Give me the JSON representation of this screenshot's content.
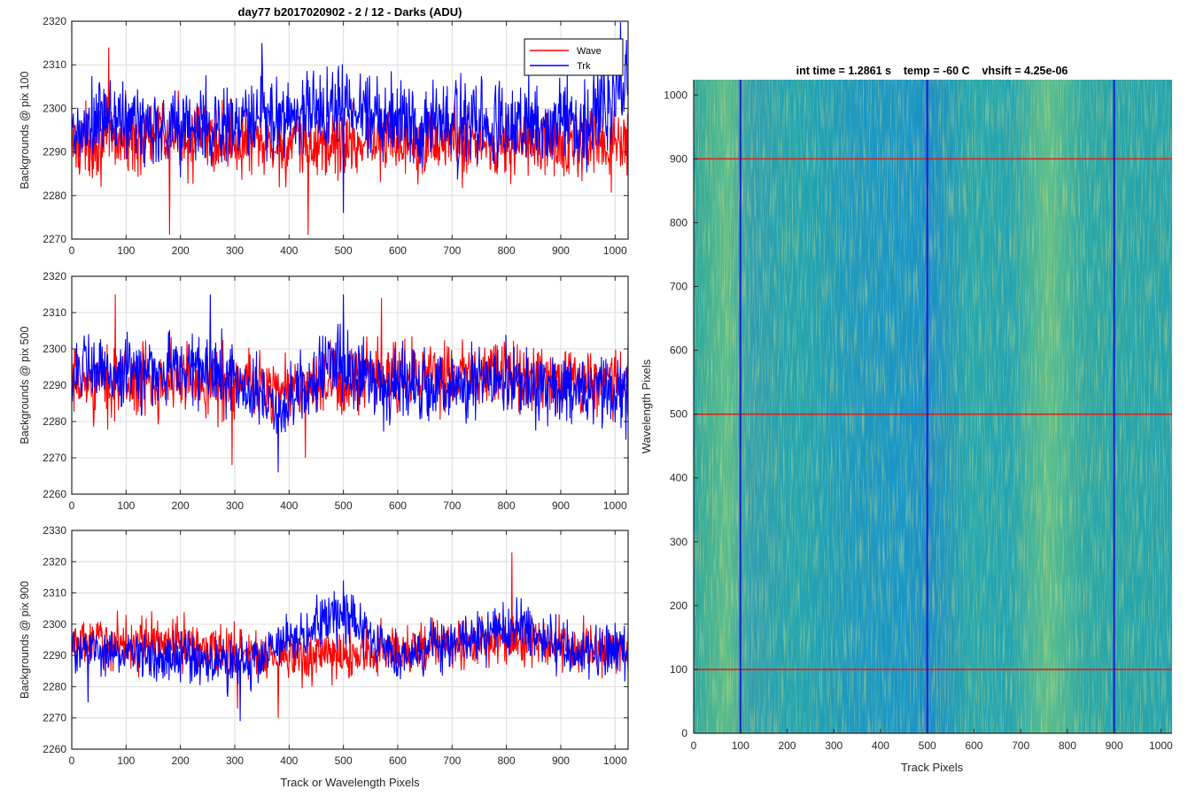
{
  "figure": {
    "title": "day77 b2017020902 - 2 / 12 - Darks (ADU)",
    "left_xlabel": "Track or Wavelength Pixels"
  },
  "chart_data": [
    {
      "type": "line",
      "title": "day77 b2017020902 - 2 / 12 - Darks (ADU)",
      "xlabel": "",
      "ylabel": "Backgrounds @ pix 100",
      "xlim": [
        0,
        1024
      ],
      "ylim": [
        2270,
        2320
      ],
      "xticks": [
        0,
        100,
        200,
        300,
        400,
        500,
        600,
        700,
        800,
        900,
        1000
      ],
      "yticks": [
        2270,
        2280,
        2290,
        2300,
        2310,
        2320
      ],
      "grid": true,
      "legend": "top-right",
      "series": [
        {
          "name": "Wave",
          "color": "#ff0000",
          "mean": 2293,
          "noise": 5,
          "anchors": [
            [
              0,
              2292
            ],
            [
              180,
              2294
            ],
            [
              380,
              2291
            ],
            [
              600,
              2293
            ],
            [
              800,
              2292
            ],
            [
              1024,
              2291
            ]
          ],
          "extremes": [
            [
              68,
              2314
            ],
            [
              180,
              2270
            ],
            [
              435,
              2271
            ]
          ]
        },
        {
          "name": "Trk",
          "color": "#0000ff",
          "mean": 2297,
          "noise": 6,
          "anchors": [
            [
              0,
              2292
            ],
            [
              60,
              2298
            ],
            [
              140,
              2296
            ],
            [
              300,
              2296
            ],
            [
              380,
              2298
            ],
            [
              500,
              2301
            ],
            [
              640,
              2297
            ],
            [
              800,
              2296
            ],
            [
              950,
              2297
            ],
            [
              1024,
              2308
            ]
          ],
          "extremes": [
            [
              1010,
              2320
            ],
            [
              500,
              2276
            ],
            [
              350,
              2315
            ]
          ]
        }
      ]
    },
    {
      "type": "line",
      "xlabel": "",
      "ylabel": "Backgrounds @ pix 500",
      "xlim": [
        0,
        1024
      ],
      "ylim": [
        2260,
        2320
      ],
      "xticks": [
        0,
        100,
        200,
        300,
        400,
        500,
        600,
        700,
        800,
        900,
        1000
      ],
      "yticks": [
        2260,
        2270,
        2280,
        2290,
        2300,
        2310,
        2320
      ],
      "grid": true,
      "series": [
        {
          "name": "Wave",
          "color": "#ff0000",
          "mean": 2291,
          "noise": 6,
          "anchors": [
            [
              0,
              2290
            ],
            [
              200,
              2292
            ],
            [
              400,
              2289
            ],
            [
              600,
              2292
            ],
            [
              800,
              2293
            ],
            [
              1024,
              2291
            ]
          ],
          "extremes": [
            [
              295,
              2268
            ],
            [
              80,
              2315
            ],
            [
              570,
              2314
            ],
            [
              430,
              2270
            ]
          ]
        },
        {
          "name": "Trk",
          "color": "#0000ff",
          "mean": 2292,
          "noise": 6,
          "anchors": [
            [
              0,
              2294
            ],
            [
              120,
              2293
            ],
            [
              220,
              2295
            ],
            [
              300,
              2292
            ],
            [
              380,
              2283
            ],
            [
              480,
              2296
            ],
            [
              600,
              2290
            ],
            [
              800,
              2290
            ],
            [
              1024,
              2287
            ]
          ],
          "extremes": [
            [
              380,
              2266
            ],
            [
              500,
              2315
            ],
            [
              255,
              2315
            ],
            [
              1020,
              2275
            ]
          ]
        }
      ]
    },
    {
      "type": "line",
      "xlabel": "Track or Wavelength Pixels",
      "ylabel": "Backgrounds @ pix 900",
      "xlim": [
        0,
        1024
      ],
      "ylim": [
        2260,
        2330
      ],
      "xticks": [
        0,
        100,
        200,
        300,
        400,
        500,
        600,
        700,
        800,
        900,
        1000
      ],
      "yticks": [
        2260,
        2270,
        2280,
        2290,
        2300,
        2310,
        2320,
        2330
      ],
      "grid": true,
      "series": [
        {
          "name": "Wave",
          "color": "#ff0000",
          "mean": 2292,
          "noise": 5,
          "anchors": [
            [
              0,
              2294
            ],
            [
              200,
              2294
            ],
            [
              400,
              2289
            ],
            [
              500,
              2290
            ],
            [
              600,
              2292
            ],
            [
              800,
              2295
            ],
            [
              1024,
              2291
            ]
          ],
          "extremes": [
            [
              810,
              2323
            ],
            [
              380,
              2270
            ],
            [
              305,
              2273
            ]
          ]
        },
        {
          "name": "Trk",
          "color": "#0000ff",
          "mean": 2292,
          "noise": 5,
          "anchors": [
            [
              0,
              2292
            ],
            [
              200,
              2290
            ],
            [
              300,
              2286
            ],
            [
              400,
              2294
            ],
            [
              500,
              2304
            ],
            [
              600,
              2290
            ],
            [
              700,
              2293
            ],
            [
              830,
              2300
            ],
            [
              900,
              2292
            ],
            [
              1024,
              2292
            ]
          ],
          "extremes": [
            [
              500,
              2314
            ],
            [
              310,
              2269
            ],
            [
              30,
              2275
            ]
          ]
        }
      ]
    },
    {
      "type": "heatmap",
      "title": "int time = 1.2861 s    temp = -60 C    vhsift = 4.25e-06",
      "xlabel": "Track Pixels",
      "ylabel": "Wavelength Pixels",
      "xlim": [
        0,
        1024
      ],
      "ylim": [
        0,
        1024
      ],
      "xticks": [
        0,
        100,
        200,
        300,
        400,
        500,
        600,
        700,
        800,
        900,
        1000
      ],
      "yticks": [
        0,
        100,
        200,
        300,
        400,
        500,
        600,
        700,
        800,
        900,
        1000
      ],
      "colormap": "parula",
      "blue_vertical_lines_x": [
        100,
        500,
        900
      ],
      "red_horizontal_lines_y": [
        100,
        500,
        900
      ]
    }
  ]
}
